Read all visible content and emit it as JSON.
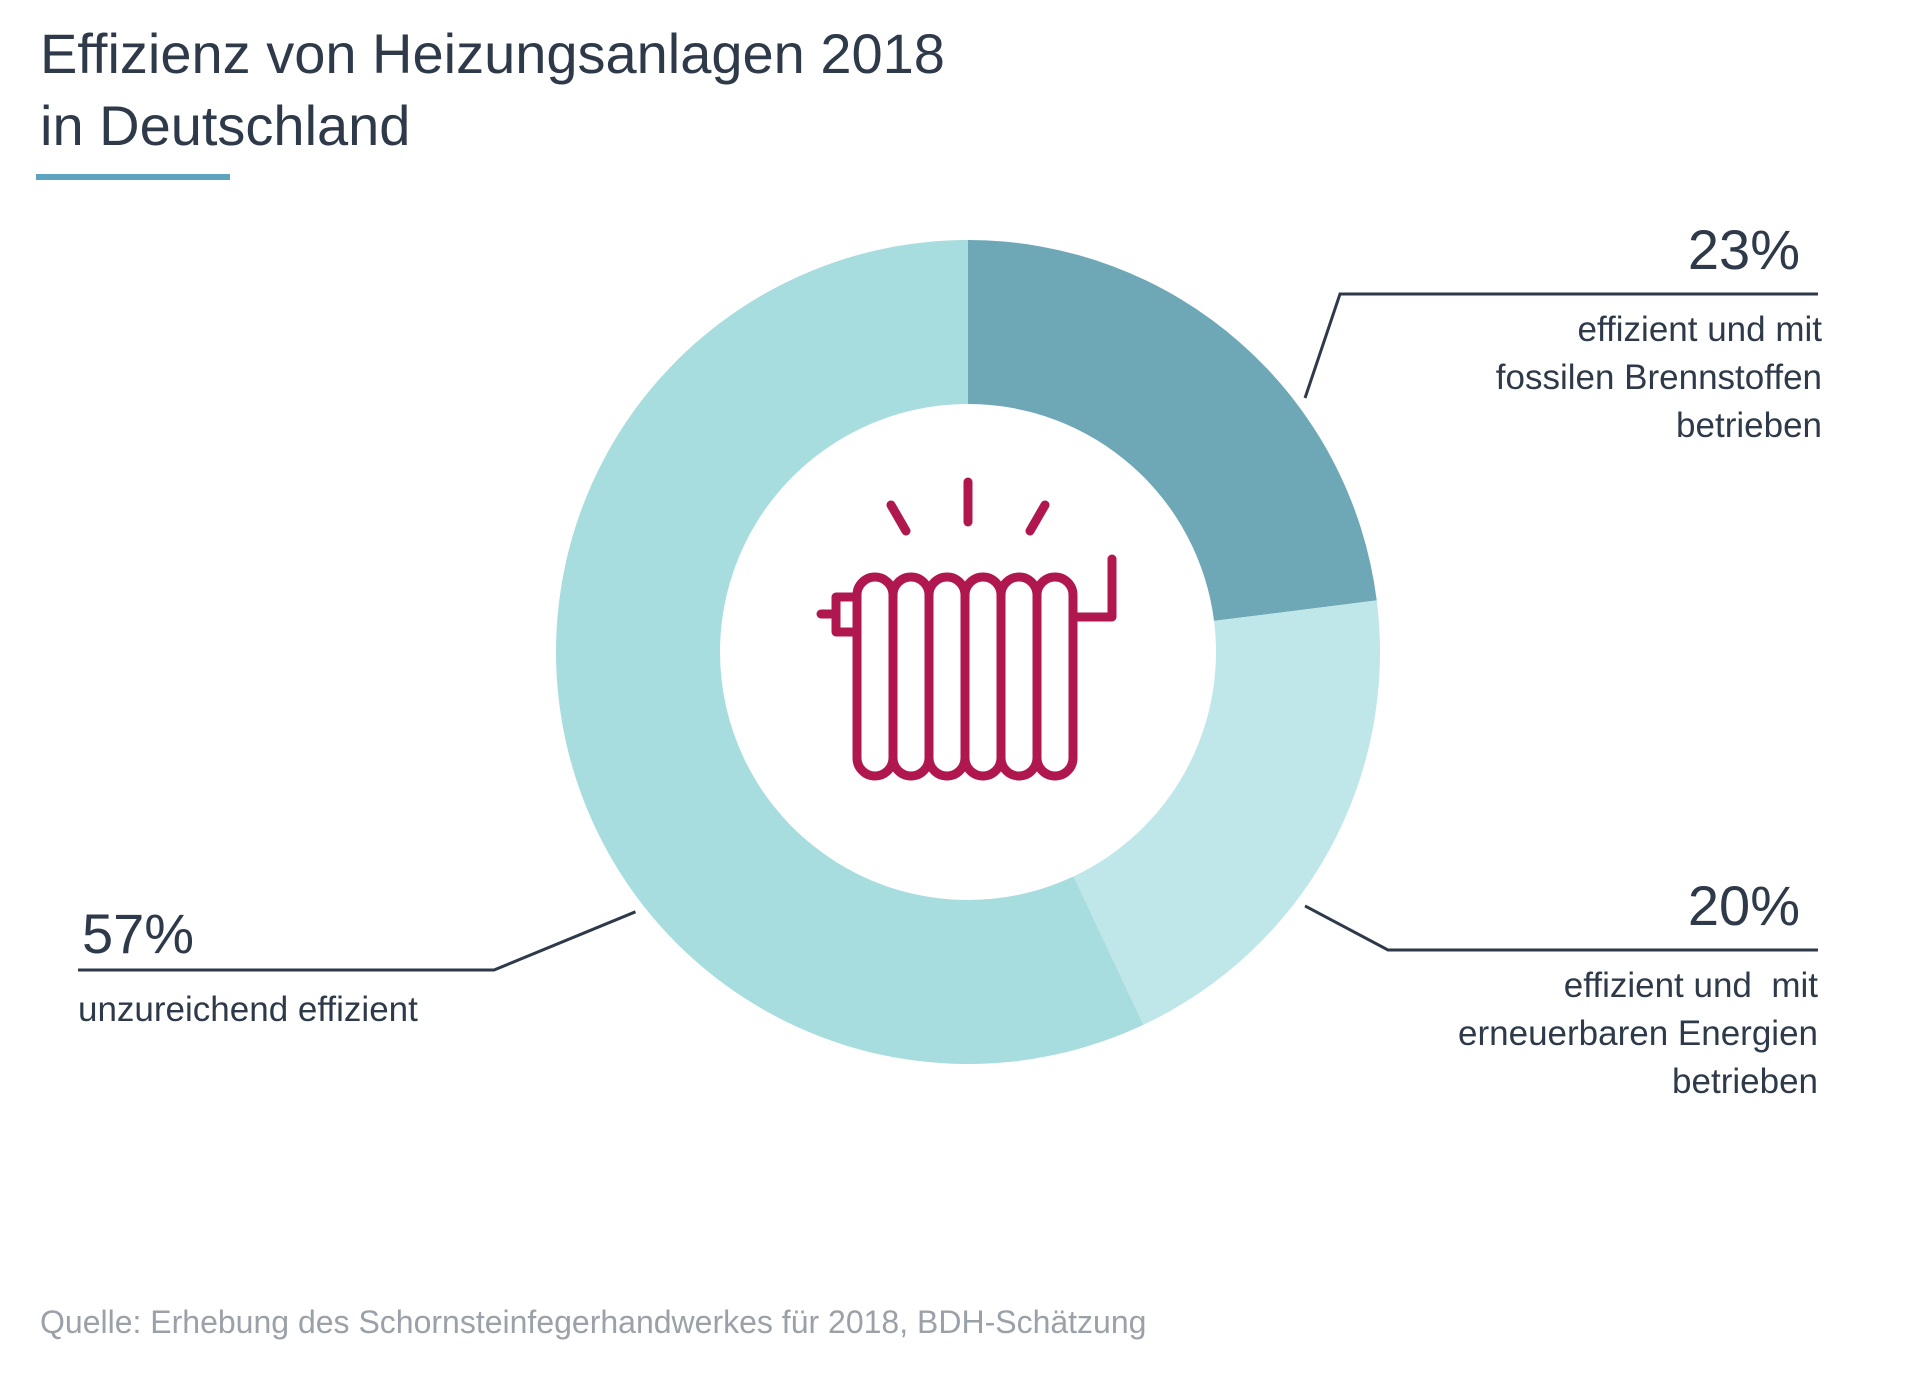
{
  "title": {
    "line1": "Effizienz von Heizungsanlagen 2018",
    "line2": "in Deutschland"
  },
  "source": "Quelle: Erhebung des Schornsteinfegerhandwerkes für 2018, BDH-Schätzung",
  "center_icon": "radiator-icon",
  "colors": {
    "accent_underline": "#5fa4bf",
    "slice_fossil": "#6ea8b7",
    "slice_renewable": "#bfe6e9",
    "slice_insufficient": "#a7dddf",
    "icon": "#b0174f",
    "leader": "#2e3a4a"
  },
  "chart_data": {
    "type": "pie",
    "donut": true,
    "title": "Effizienz von Heizungsanlagen 2018 in Deutschland",
    "slices": [
      {
        "key": "fossil",
        "value": 23,
        "pct_label": "23%",
        "label_lines": [
          "effizient und mit",
          "fossilen Brennstoffen",
          "betrieben"
        ],
        "color": "#6ea8b7"
      },
      {
        "key": "renewable",
        "value": 20,
        "pct_label": "20%",
        "label_lines": [
          "effizient und  mit",
          "erneuerbaren Energien",
          "betrieben"
        ],
        "color": "#bfe6e9"
      },
      {
        "key": "insufficient",
        "value": 57,
        "pct_label": "57%",
        "label_lines": [
          "unzureichend effizient"
        ],
        "color": "#a7dddf"
      }
    ],
    "legend": "none"
  }
}
